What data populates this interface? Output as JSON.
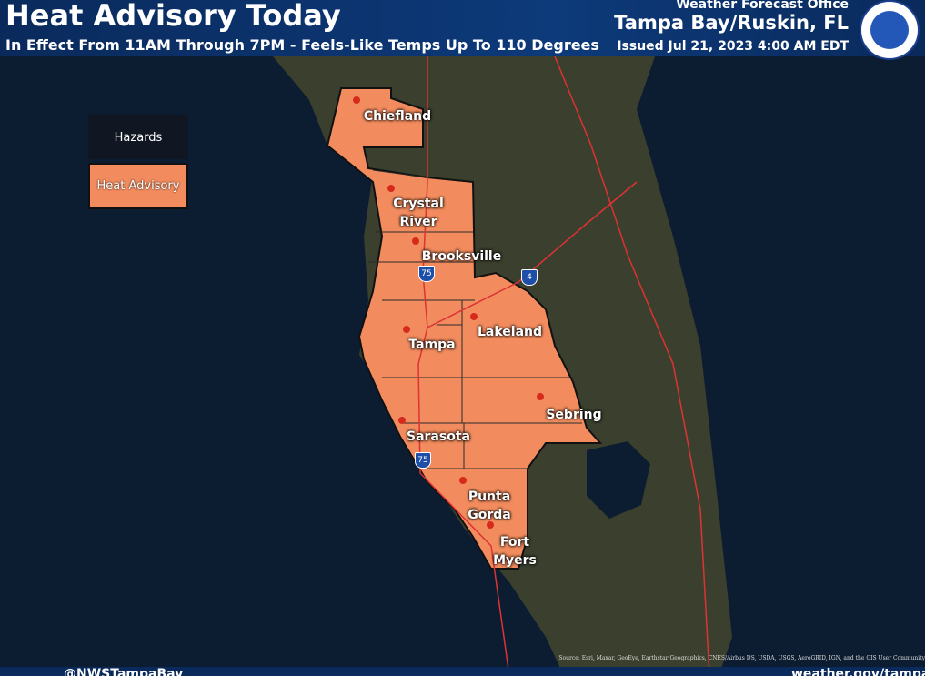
{
  "header": {
    "title": "Heat Advisory Today",
    "subtitle": "In Effect From 11AM Through 7PM  -  Feels-Like Temps Up To 110 Degrees",
    "office_label": "Weather Forecast Office",
    "office": "Tampa Bay/Ruskin, FL",
    "issued": "Issued Jul 21, 2023 4:00 AM EDT"
  },
  "legend": {
    "title": "Hazards",
    "items": [
      "Heat Advisory"
    ]
  },
  "cities": [
    "Chiefland",
    "Crystal River",
    "Brooksville",
    "Tampa",
    "Lakeland",
    "Sarasota",
    "Sebring",
    "Punta Gorda",
    "Fort Myers"
  ],
  "highways": [
    "75",
    "4",
    "75"
  ],
  "source": "Source: Esri, Maxar, GeoEye, Earthstar Geographics, CNES/Airbus DS, USDA, USGS, AeroGRID, IGN, and the GIS User Community",
  "footer": {
    "social": "@NWSTampaBay",
    "website": "weather.gov/tampabay"
  }
}
